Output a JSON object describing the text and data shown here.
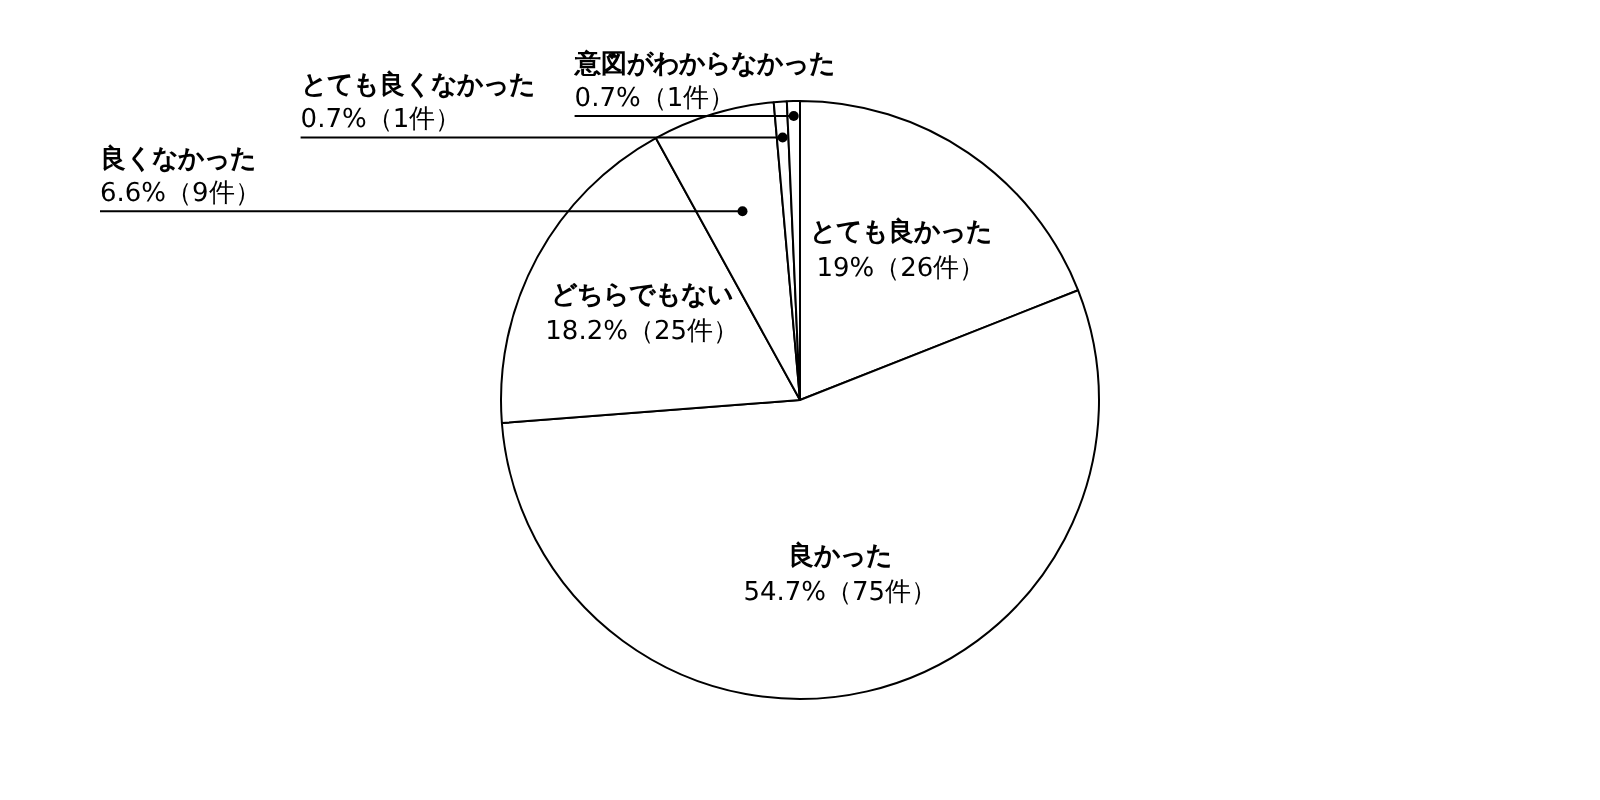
{
  "chart_data": {
    "type": "pie",
    "categories": [
      "とても良かった",
      "良かった",
      "どちらでもない",
      "良くなかった",
      "とても良くなかった",
      "意図がわからなかった"
    ],
    "values": [
      19,
      54.7,
      18.2,
      6.6,
      0.7,
      0.7
    ],
    "colors": [
      "#ffffff",
      "#ffffff",
      "#ffffff",
      "#ffffff",
      "#ffffff",
      "#ffffff"
    ],
    "value_labels": [
      "19%（26件）",
      "54.7%（75件）",
      "18.2%（25件）",
      "6.6%（9件）",
      "0.7%（1件）",
      "0.7%（1件）"
    ],
    "legend": false
  }
}
